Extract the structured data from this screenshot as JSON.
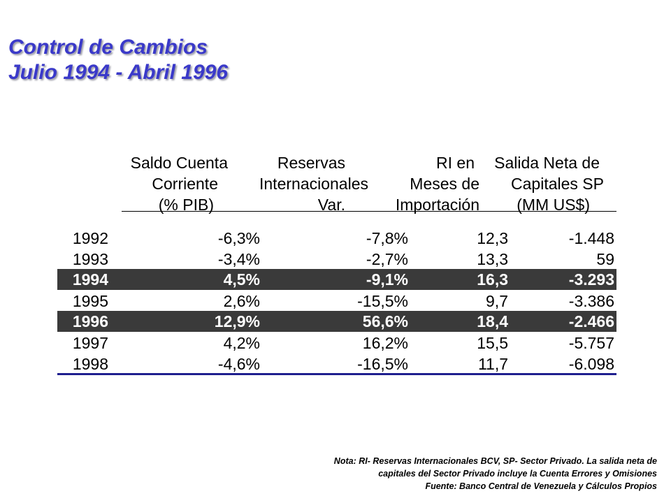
{
  "title": {
    "line1": "Control de Cambios",
    "line2": "Julio 1994 - Abril 1996"
  },
  "table": {
    "headers": [
      [
        "Saldo Cuenta",
        "Corriente",
        "(% PIB)"
      ],
      [
        "Reservas",
        "Internacionales",
        "Var."
      ],
      [
        "RI en",
        "Meses de",
        "Importación"
      ],
      [
        "Salida Neta de",
        "Capitales SP",
        "(MM US$)"
      ]
    ],
    "rows": [
      {
        "year": "1992",
        "saldo": "-6,3%",
        "reservas": "-7,8%",
        "ri": "12,3",
        "salida": "-1.448",
        "highlight": false
      },
      {
        "year": "1993",
        "saldo": "-3,4%",
        "reservas": "-2,7%",
        "ri": "13,3",
        "salida": "59",
        "highlight": false
      },
      {
        "year": "1994",
        "saldo": "4,5%",
        "reservas": "-9,1%",
        "ri": "16,3",
        "salida": "-3.293",
        "highlight": true
      },
      {
        "year": "1995",
        "saldo": "2,6%",
        "reservas": "-15,5%",
        "ri": "9,7",
        "salida": "-3.386",
        "highlight": false
      },
      {
        "year": "1996",
        "saldo": "12,9%",
        "reservas": "56,6%",
        "ri": "18,4",
        "salida": "-2.466",
        "highlight": true
      },
      {
        "year": "1997",
        "saldo": "4,2%",
        "reservas": "16,2%",
        "ri": "15,5",
        "salida": "-5.757",
        "highlight": false
      },
      {
        "year": "1998",
        "saldo": "-4,6%",
        "reservas": "-16,5%",
        "ri": "11,7",
        "salida": "-6.098",
        "highlight": false
      }
    ]
  },
  "note": {
    "line1": "Nota: RI- Reservas Internacionales BCV, SP- Sector Privado.  La salida neta de",
    "line2": "capitales del Sector Privado incluye la Cuenta Errores y Omisiones",
    "line3": "Fuente: Banco Central de Venezuela y Cálculos Propios"
  },
  "colors": {
    "title": "#3a39c9",
    "highlight_row": "#3a3a3a",
    "bottom_rule": "#1f1f8f"
  }
}
